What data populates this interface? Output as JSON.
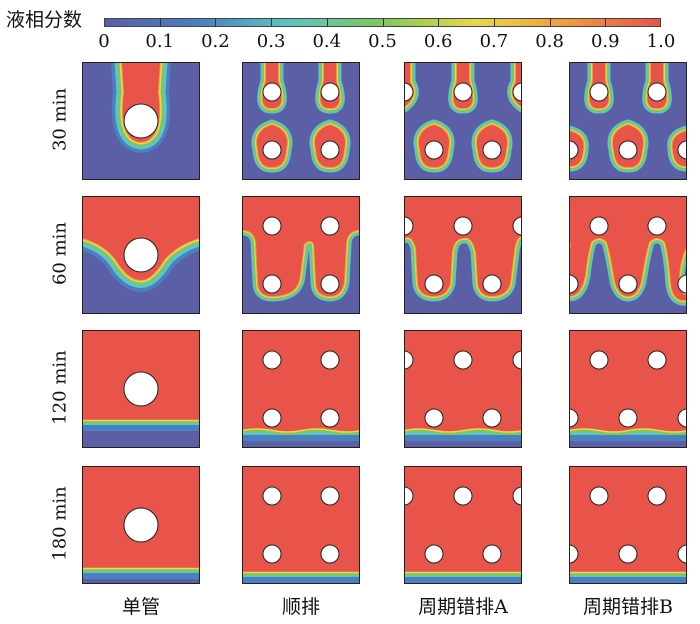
{
  "colorbar": {
    "title": "液相分数",
    "ticks": [
      "0",
      "0.1",
      "0.2",
      "0.3",
      "0.4",
      "0.5",
      "0.6",
      "0.7",
      "0.8",
      "0.9",
      "1.0"
    ],
    "tick_values": [
      0,
      0.1,
      0.2,
      0.3,
      0.4,
      0.5,
      0.6,
      0.7,
      0.8,
      0.9,
      1.0
    ],
    "colors": {
      "solid": "#5a5fa6",
      "blue": "#4a7fc0",
      "cyan": "#5ec4c4",
      "green": "#7ec85a",
      "yellow": "#e8d84a",
      "orange": "#f09a40",
      "liquid": "#e8534a"
    }
  },
  "rows": [
    {
      "label": "30 min",
      "stage": 1
    },
    {
      "label": "60 min",
      "stage": 2
    },
    {
      "label": "120 min",
      "stage": 3
    },
    {
      "label": "180 min",
      "stage": 4
    }
  ],
  "columns": [
    {
      "label": "单管",
      "arrangement": "single"
    },
    {
      "label": "顺排",
      "arrangement": "inline"
    },
    {
      "label": "周期错排A",
      "arrangement": "staggered-a"
    },
    {
      "label": "周期错排B",
      "arrangement": "staggered-b"
    }
  ]
}
